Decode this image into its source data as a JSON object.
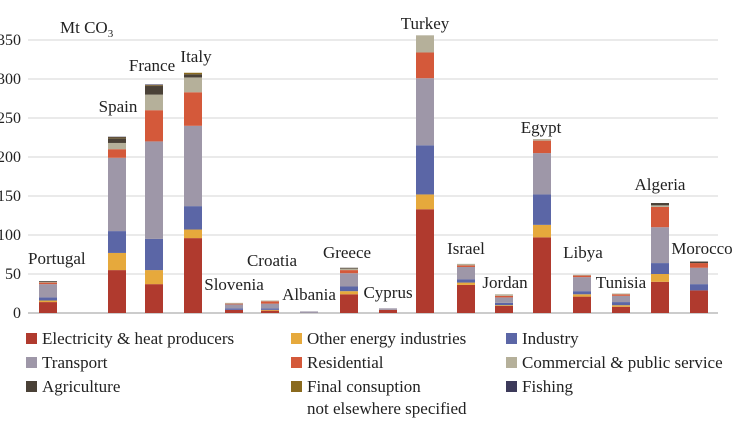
{
  "chart_data": {
    "type": "bar",
    "stacked": true,
    "unit_label": "Mt CO",
    "unit_subscript": "3",
    "ylim": [
      0,
      350
    ],
    "yticks": [
      0,
      50,
      100,
      150,
      200,
      250,
      300,
      350
    ],
    "grid": true,
    "legend_position": "bottom",
    "categories": [
      "Portugal",
      "Spain",
      "France",
      "Italy",
      "Slovenia",
      "Croatia",
      "Albania",
      "Greece",
      "Cyprus",
      "Turkey",
      "Israel",
      "Jordan",
      "Egypt",
      "Libya",
      "Tunisia",
      "Algeria",
      "Morocco"
    ],
    "series": [
      {
        "name": "Electricity & heat producers",
        "color": "#b03a2e",
        "values": [
          14,
          55,
          37,
          96,
          4,
          3,
          0,
          24,
          4,
          133,
          36,
          9,
          97,
          21,
          8,
          40,
          29
        ]
      },
      {
        "name": "Other energy industries",
        "color": "#e6a93c",
        "values": [
          2,
          22,
          18,
          11,
          0,
          1,
          0,
          4,
          0,
          19,
          3,
          1,
          16,
          3,
          2,
          10,
          0
        ]
      },
      {
        "name": "Industry",
        "color": "#5b66a6",
        "values": [
          4,
          28,
          40,
          30,
          2,
          2,
          0,
          6,
          0,
          63,
          4,
          3,
          39,
          4,
          4,
          14,
          8
        ]
      },
      {
        "name": "Transport",
        "color": "#9e97a8",
        "values": [
          17,
          94,
          125,
          103,
          5,
          6,
          2,
          17,
          2,
          86,
          16,
          7,
          53,
          18,
          8,
          46,
          21
        ]
      },
      {
        "name": "Residential",
        "color": "#d4593a",
        "values": [
          2,
          11,
          40,
          43,
          1,
          3,
          0,
          4,
          0,
          33,
          2,
          2,
          16,
          2,
          2,
          26,
          6
        ]
      },
      {
        "name": "Commercial & public service",
        "color": "#b5b09a",
        "values": [
          1,
          8,
          20,
          19,
          1,
          1,
          0,
          2,
          0,
          22,
          2,
          2,
          2,
          1,
          1,
          2,
          0
        ]
      },
      {
        "name": "Agriculture",
        "color": "#4a4137",
        "values": [
          1,
          6,
          11,
          4,
          0,
          0,
          0,
          1,
          0,
          0,
          0,
          0,
          0,
          0,
          0,
          3,
          2
        ]
      },
      {
        "name": "Final consuption not elsewhere specified",
        "color": "#8a6a1e",
        "values": [
          0,
          1,
          1,
          2,
          0,
          0,
          0,
          0,
          0,
          0,
          0,
          0,
          0,
          0,
          0,
          0,
          0
        ]
      },
      {
        "name": "Fishing",
        "color": "#3c3a5a",
        "values": [
          0,
          1,
          1,
          0,
          0,
          0,
          0,
          0,
          0,
          0,
          0,
          0,
          0,
          0,
          0,
          0,
          0
        ]
      }
    ],
    "legend_labels": [
      [
        "Electricity & heat producers"
      ],
      [
        "Other energy industries"
      ],
      [
        "Industry"
      ],
      [
        "Transport"
      ],
      [
        "Residential"
      ],
      [
        "Commercial & public service"
      ],
      [
        "Agriculture"
      ],
      [
        "Final consuption",
        "not elsewhere specified"
      ],
      [
        "Fishing"
      ]
    ]
  }
}
